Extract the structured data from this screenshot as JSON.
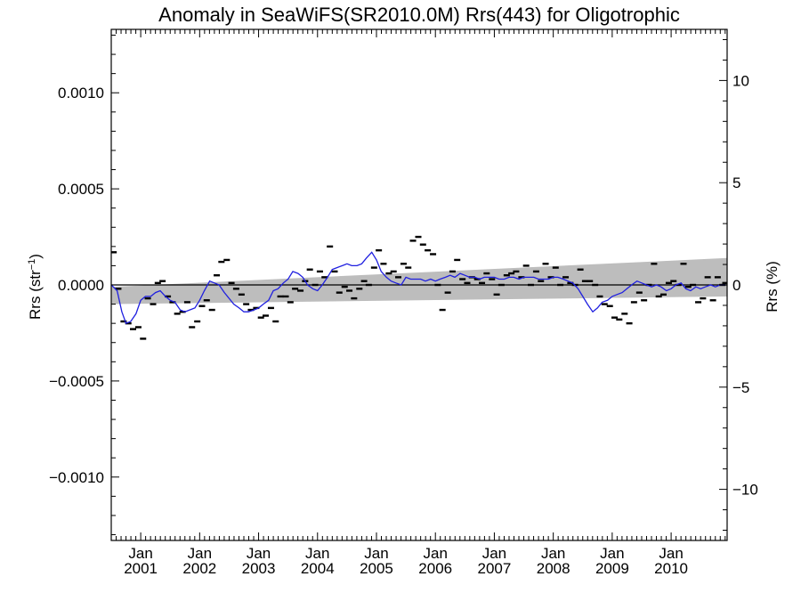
{
  "chart_data": {
    "type": "line",
    "title": "Anomaly in SeaWiFS(SR2010.0M) Rrs(443) for Oligotrophic",
    "ylabel_left": {
      "base": "Rrs (str",
      "sup": "−1",
      "close": ")"
    },
    "ylabel_right": "Rrs (%)",
    "xlim": [
      2000.5,
      2010.95
    ],
    "ylim": [
      -0.00133,
      0.00133
    ],
    "y2lim": [
      -12.5,
      12.5
    ],
    "yticks": [
      {
        "value": 0.001,
        "label": "0.0010"
      },
      {
        "value": 0.0005,
        "label": "0.0005"
      },
      {
        "value": 0.0,
        "label": "0.0000"
      },
      {
        "value": -0.0005,
        "label": "−0.0005"
      },
      {
        "value": -0.001,
        "label": "−0.0010"
      }
    ],
    "y2ticks": [
      {
        "value": 10,
        "label": "10"
      },
      {
        "value": 5,
        "label": "5"
      },
      {
        "value": 0,
        "label": "0"
      },
      {
        "value": -5,
        "label": "−5"
      },
      {
        "value": -10,
        "label": "−10"
      }
    ],
    "xticks": [
      {
        "value": 2001.0,
        "month": "Jan",
        "year": "2001"
      },
      {
        "value": 2002.0,
        "month": "Jan",
        "year": "2002"
      },
      {
        "value": 2003.0,
        "month": "Jan",
        "year": "2003"
      },
      {
        "value": 2004.0,
        "month": "Jan",
        "year": "2004"
      },
      {
        "value": 2005.0,
        "month": "Jan",
        "year": "2005"
      },
      {
        "value": 2006.0,
        "month": "Jan",
        "year": "2006"
      },
      {
        "value": 2007.0,
        "month": "Jan",
        "year": "2007"
      },
      {
        "value": 2008.0,
        "month": "Jan",
        "year": "2008"
      },
      {
        "value": 2009.0,
        "month": "Jan",
        "year": "2009"
      },
      {
        "value": 2010.0,
        "month": "Jan",
        "year": "2010"
      }
    ],
    "band": {
      "color": "#bdbdbd",
      "upper": [
        [
          2000.5,
          -1e-05
        ],
        [
          2010.95,
          0.00014
        ]
      ],
      "lower": [
        [
          2000.5,
          -0.0001
        ],
        [
          2010.95,
          -6e-05
        ]
      ]
    },
    "series": [
      {
        "kind": "markers",
        "color": "#000000",
        "points": [
          [
            2000.54,
            0.00017
          ],
          [
            2000.62,
            -2e-05
          ],
          [
            2000.71,
            -0.00019
          ],
          [
            2000.79,
            -0.0002
          ],
          [
            2000.87,
            -0.00023
          ],
          [
            2000.96,
            -0.00022
          ],
          [
            2001.04,
            -0.00028
          ],
          [
            2001.12,
            -7e-05
          ],
          [
            2001.21,
            -0.0001
          ],
          [
            2001.29,
            1e-05
          ],
          [
            2001.37,
            2e-05
          ],
          [
            2001.46,
            -6e-05
          ],
          [
            2001.54,
            -9e-05
          ],
          [
            2001.62,
            -0.00015
          ],
          [
            2001.71,
            -0.00014
          ],
          [
            2001.79,
            -9e-05
          ],
          [
            2001.87,
            -0.00022
          ],
          [
            2001.96,
            -0.00019
          ],
          [
            2002.04,
            -0.00011
          ],
          [
            2002.12,
            -8e-05
          ],
          [
            2002.21,
            -0.00013
          ],
          [
            2002.29,
            5e-05
          ],
          [
            2002.37,
            0.00012
          ],
          [
            2002.46,
            0.00013
          ],
          [
            2002.54,
            1e-05
          ],
          [
            2002.62,
            -2e-05
          ],
          [
            2002.71,
            -5e-05
          ],
          [
            2002.79,
            -0.0001
          ],
          [
            2002.87,
            -0.00013
          ],
          [
            2002.96,
            -0.00012
          ],
          [
            2003.04,
            -0.00017
          ],
          [
            2003.12,
            -0.00016
          ],
          [
            2003.21,
            -0.00012
          ],
          [
            2003.29,
            -0.00019
          ],
          [
            2003.37,
            -6e-05
          ],
          [
            2003.46,
            -6e-05
          ],
          [
            2003.54,
            -9e-05
          ],
          [
            2003.62,
            -2e-05
          ],
          [
            2003.71,
            -3e-05
          ],
          [
            2003.79,
            2e-05
          ],
          [
            2003.87,
            8e-05
          ],
          [
            2003.96,
            0.0
          ],
          [
            2004.04,
            7e-05
          ],
          [
            2004.12,
            4e-05
          ],
          [
            2004.21,
            0.0002
          ],
          [
            2004.29,
            7e-05
          ],
          [
            2004.37,
            -4e-05
          ],
          [
            2004.46,
            -1e-05
          ],
          [
            2004.54,
            -3e-05
          ],
          [
            2004.62,
            -7e-05
          ],
          [
            2004.71,
            -2e-05
          ],
          [
            2004.79,
            2e-05
          ],
          [
            2004.87,
            0.0
          ],
          [
            2004.96,
            9e-05
          ],
          [
            2005.04,
            0.00018
          ],
          [
            2005.12,
            0.00011
          ],
          [
            2005.21,
            6e-05
          ],
          [
            2005.29,
            7e-05
          ],
          [
            2005.37,
            4e-05
          ],
          [
            2005.46,
            0.00011
          ],
          [
            2005.54,
            9e-05
          ],
          [
            2005.62,
            0.00023
          ],
          [
            2005.71,
            0.00025
          ],
          [
            2005.79,
            0.00021
          ],
          [
            2005.87,
            0.00018
          ],
          [
            2005.96,
            0.00016
          ],
          [
            2006.04,
            0.0
          ],
          [
            2006.12,
            -0.00013
          ],
          [
            2006.21,
            -4e-05
          ],
          [
            2006.29,
            7e-05
          ],
          [
            2006.37,
            0.00013
          ],
          [
            2006.46,
            3e-05
          ],
          [
            2006.54,
            1e-05
          ],
          [
            2006.62,
            4e-05
          ],
          [
            2006.71,
            3e-05
          ],
          [
            2006.79,
            1e-05
          ],
          [
            2006.87,
            6e-05
          ],
          [
            2006.96,
            3e-05
          ],
          [
            2007.04,
            -5e-05
          ],
          [
            2007.12,
            0.0
          ],
          [
            2007.21,
            5e-05
          ],
          [
            2007.29,
            6e-05
          ],
          [
            2007.37,
            7e-05
          ],
          [
            2007.46,
            4e-05
          ],
          [
            2007.54,
            0.0001
          ],
          [
            2007.62,
            0.0
          ],
          [
            2007.71,
            7e-05
          ],
          [
            2007.79,
            2e-05
          ],
          [
            2007.87,
            0.00011
          ],
          [
            2007.96,
            4e-05
          ],
          [
            2008.04,
            9e-05
          ],
          [
            2008.12,
            0.0
          ],
          [
            2008.21,
            4e-05
          ],
          [
            2008.29,
            1e-05
          ],
          [
            2008.37,
            0.0
          ],
          [
            2008.46,
            8e-05
          ],
          [
            2008.54,
            2e-05
          ],
          [
            2008.62,
            2e-05
          ],
          [
            2008.71,
            0.0
          ],
          [
            2008.79,
            -6e-05
          ],
          [
            2008.87,
            -0.0001
          ],
          [
            2008.96,
            -0.00011
          ],
          [
            2009.04,
            -0.00017
          ],
          [
            2009.12,
            -0.00018
          ],
          [
            2009.21,
            -0.00015
          ],
          [
            2009.29,
            -0.0002
          ],
          [
            2009.37,
            -9e-05
          ],
          [
            2009.46,
            -4e-05
          ],
          [
            2009.54,
            -8e-05
          ],
          [
            2009.62,
            0.0
          ],
          [
            2009.71,
            0.00011
          ],
          [
            2009.79,
            -6e-05
          ],
          [
            2009.87,
            -5e-05
          ],
          [
            2009.96,
            1e-05
          ],
          [
            2010.04,
            2e-05
          ],
          [
            2010.12,
            0.0
          ],
          [
            2010.21,
            0.00011
          ],
          [
            2010.29,
            -1e-05
          ],
          [
            2010.37,
            0.0
          ],
          [
            2010.46,
            -9e-05
          ],
          [
            2010.54,
            -7e-05
          ],
          [
            2010.62,
            4e-05
          ],
          [
            2010.71,
            -8e-05
          ],
          [
            2010.79,
            4e-05
          ],
          [
            2010.87,
            0.0
          ],
          [
            2010.92,
            1e-05
          ]
        ]
      },
      {
        "kind": "line",
        "color": "#1f1fe0",
        "points": [
          [
            2000.5,
            0.0
          ],
          [
            2000.6,
            -3e-05
          ],
          [
            2000.68,
            -0.00014
          ],
          [
            2000.75,
            -0.0002
          ],
          [
            2000.83,
            -0.00019
          ],
          [
            2000.92,
            -0.00015
          ],
          [
            2001.0,
            -8e-05
          ],
          [
            2001.08,
            -6e-05
          ],
          [
            2001.17,
            -6e-05
          ],
          [
            2001.25,
            -4e-05
          ],
          [
            2001.33,
            -3e-05
          ],
          [
            2001.42,
            -6e-05
          ],
          [
            2001.5,
            -8e-05
          ],
          [
            2001.58,
            -9e-05
          ],
          [
            2001.67,
            -0.00013
          ],
          [
            2001.75,
            -0.00014
          ],
          [
            2001.83,
            -0.00013
          ],
          [
            2001.92,
            -0.00012
          ],
          [
            2002.0,
            -8e-05
          ],
          [
            2002.08,
            -3e-05
          ],
          [
            2002.17,
            2e-05
          ],
          [
            2002.25,
            1e-05
          ],
          [
            2002.33,
            0.0
          ],
          [
            2002.42,
            -4e-05
          ],
          [
            2002.5,
            -7e-05
          ],
          [
            2002.58,
            -0.0001
          ],
          [
            2002.67,
            -0.00012
          ],
          [
            2002.75,
            -0.00014
          ],
          [
            2002.83,
            -0.00014
          ],
          [
            2002.92,
            -0.00013
          ],
          [
            2003.0,
            -0.00012
          ],
          [
            2003.08,
            -0.0001
          ],
          [
            2003.17,
            -8e-05
          ],
          [
            2003.25,
            -3e-05
          ],
          [
            2003.33,
            -2e-05
          ],
          [
            2003.42,
            1e-05
          ],
          [
            2003.5,
            3e-05
          ],
          [
            2003.58,
            7e-05
          ],
          [
            2003.67,
            6e-05
          ],
          [
            2003.75,
            4e-05
          ],
          [
            2003.83,
            0.0
          ],
          [
            2003.92,
            -2e-05
          ],
          [
            2004.0,
            -3e-05
          ],
          [
            2004.08,
            0.0
          ],
          [
            2004.17,
            4e-05
          ],
          [
            2004.25,
            8e-05
          ],
          [
            2004.33,
            9e-05
          ],
          [
            2004.42,
            0.0001
          ],
          [
            2004.5,
            0.00011
          ],
          [
            2004.58,
            0.0001
          ],
          [
            2004.67,
            0.0001
          ],
          [
            2004.75,
            0.00011
          ],
          [
            2004.83,
            0.00014
          ],
          [
            2004.92,
            0.00017
          ],
          [
            2005.0,
            0.00013
          ],
          [
            2005.08,
            7e-05
          ],
          [
            2005.17,
            4e-05
          ],
          [
            2005.25,
            2e-05
          ],
          [
            2005.33,
            1e-05
          ],
          [
            2005.42,
            0.0
          ],
          [
            2005.5,
            4e-05
          ],
          [
            2005.58,
            3e-05
          ],
          [
            2005.67,
            3e-05
          ],
          [
            2005.75,
            3e-05
          ],
          [
            2005.83,
            2e-05
          ],
          [
            2005.92,
            3e-05
          ],
          [
            2006.0,
            2e-05
          ],
          [
            2006.08,
            3e-05
          ],
          [
            2006.17,
            4e-05
          ],
          [
            2006.25,
            5e-05
          ],
          [
            2006.33,
            4e-05
          ],
          [
            2006.42,
            6e-05
          ],
          [
            2006.5,
            5e-05
          ],
          [
            2006.58,
            4e-05
          ],
          [
            2006.67,
            4e-05
          ],
          [
            2006.75,
            3e-05
          ],
          [
            2006.83,
            4e-05
          ],
          [
            2006.92,
            4e-05
          ],
          [
            2007.0,
            4e-05
          ],
          [
            2007.08,
            3e-05
          ],
          [
            2007.17,
            3e-05
          ],
          [
            2007.25,
            4e-05
          ],
          [
            2007.33,
            4e-05
          ],
          [
            2007.42,
            3e-05
          ],
          [
            2007.5,
            4e-05
          ],
          [
            2007.58,
            4e-05
          ],
          [
            2007.67,
            4e-05
          ],
          [
            2007.75,
            3e-05
          ],
          [
            2007.83,
            3e-05
          ],
          [
            2007.92,
            3e-05
          ],
          [
            2008.0,
            4e-05
          ],
          [
            2008.08,
            4e-05
          ],
          [
            2008.17,
            3e-05
          ],
          [
            2008.25,
            2e-05
          ],
          [
            2008.33,
            1e-05
          ],
          [
            2008.42,
            -2e-05
          ],
          [
            2008.5,
            -6e-05
          ],
          [
            2008.58,
            -0.0001
          ],
          [
            2008.67,
            -0.00014
          ],
          [
            2008.75,
            -0.00012
          ],
          [
            2008.83,
            -9e-05
          ],
          [
            2008.92,
            -8e-05
          ],
          [
            2009.0,
            -6e-05
          ],
          [
            2009.08,
            -5e-05
          ],
          [
            2009.17,
            -4e-05
          ],
          [
            2009.25,
            -2e-05
          ],
          [
            2009.33,
            0.0
          ],
          [
            2009.42,
            2e-05
          ],
          [
            2009.5,
            1e-05
          ],
          [
            2009.58,
            0.0
          ],
          [
            2009.67,
            -1e-05
          ],
          [
            2009.75,
            0.0
          ],
          [
            2009.83,
            -1e-05
          ],
          [
            2009.92,
            -3e-05
          ],
          [
            2010.0,
            -2e-05
          ],
          [
            2010.08,
            0.0
          ],
          [
            2010.17,
            1e-05
          ],
          [
            2010.25,
            -2e-05
          ],
          [
            2010.33,
            -3e-05
          ],
          [
            2010.42,
            -1e-05
          ],
          [
            2010.5,
            -2e-05
          ],
          [
            2010.58,
            -1e-05
          ],
          [
            2010.67,
            0.0
          ],
          [
            2010.75,
            -1e-05
          ],
          [
            2010.83,
            0.0
          ],
          [
            2010.92,
            0.0
          ]
        ]
      }
    ]
  }
}
